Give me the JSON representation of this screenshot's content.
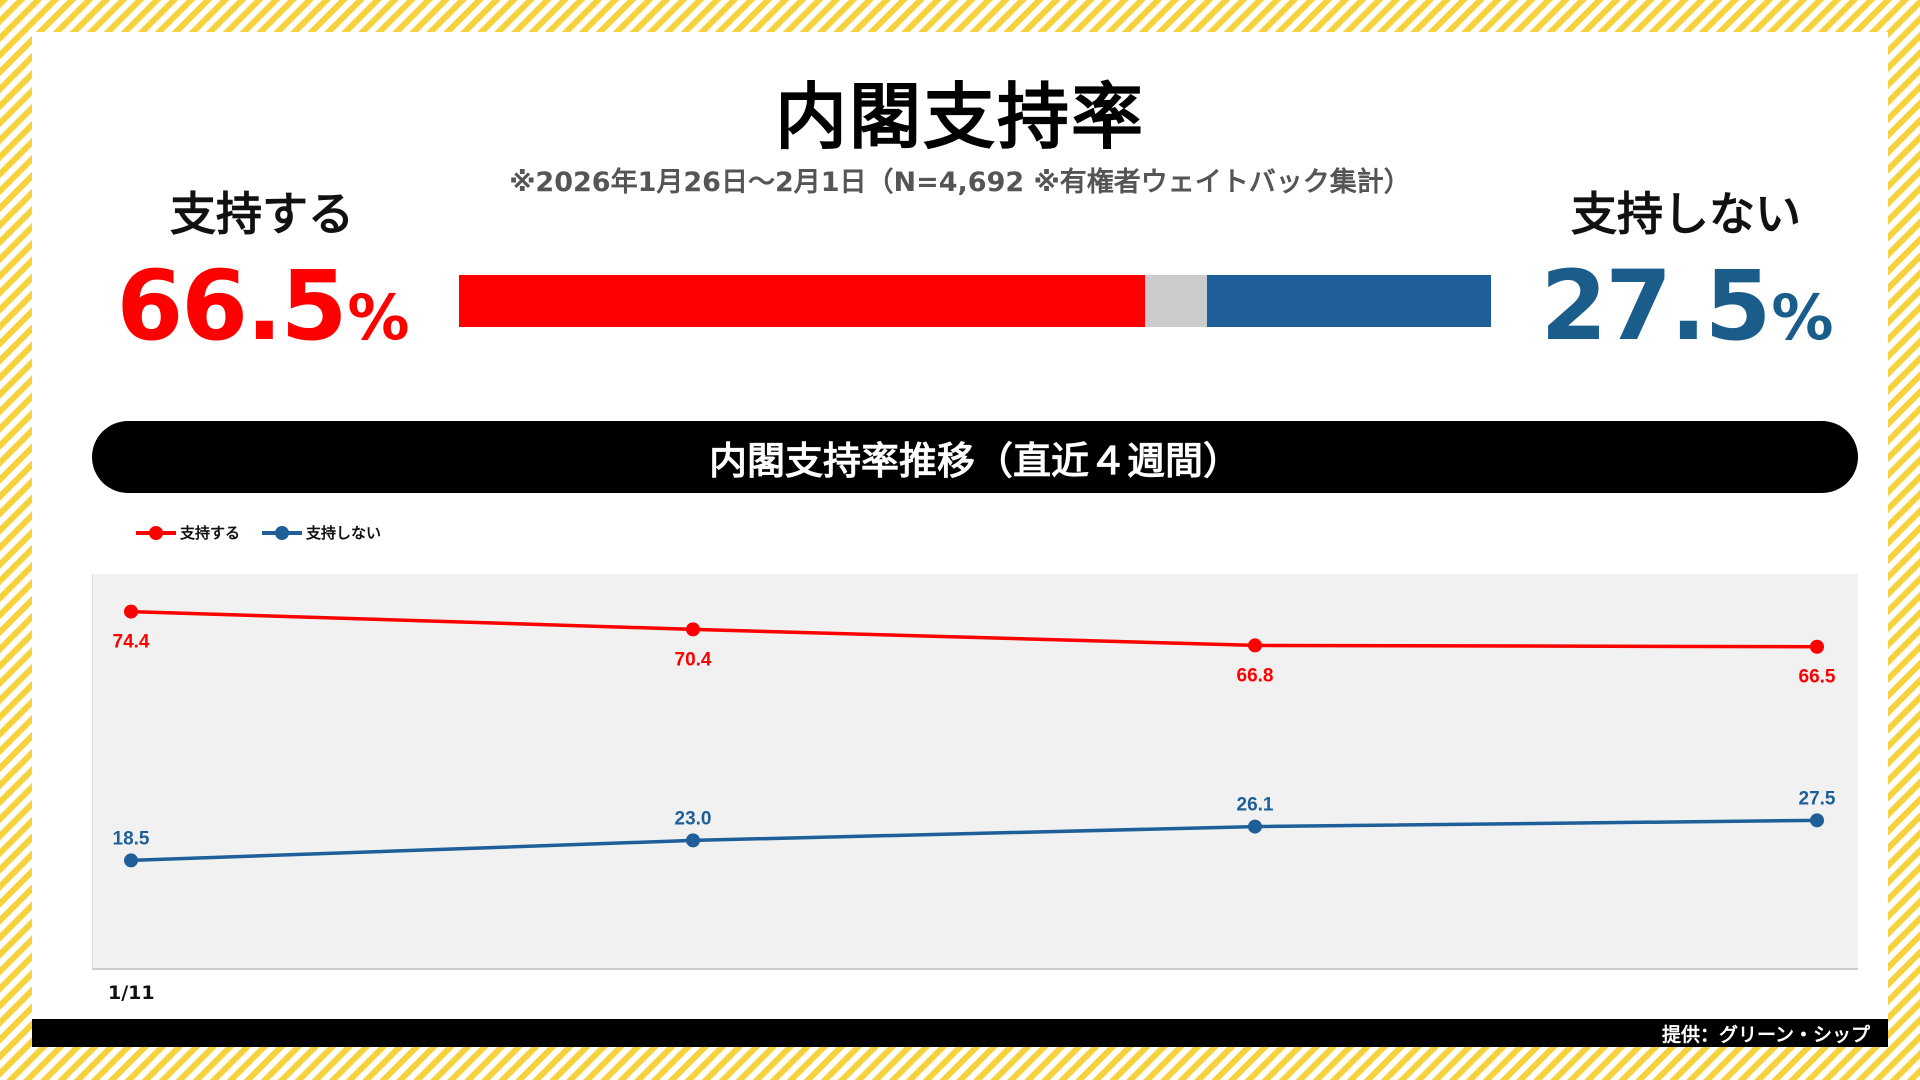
{
  "header": {
    "title": "内閣支持率",
    "subtitle": "※2026年1月26日～2月1日（N=4,692 ※有権者ウェイトバック集計）"
  },
  "summary": {
    "support_label": "支持する",
    "support_value": "66.5",
    "oppose_label": "支持しない",
    "oppose_value": "27.5",
    "percent_sign": "%",
    "support_share": 66.5,
    "other_share": 6.0,
    "oppose_share": 27.5
  },
  "colors": {
    "support": "#ff0000",
    "oppose": "#1f5f99",
    "other": "#cccccc",
    "oppose_text": "#1a5d8a"
  },
  "band": {
    "label": "内閣支持率推移（直近４週間）"
  },
  "legend": {
    "support": "支持する",
    "oppose": "支持しない"
  },
  "chart_data": {
    "type": "line",
    "categories": [
      "1/11",
      "",
      "",
      ""
    ],
    "series": [
      {
        "name": "支持する",
        "values": [
          74.4,
          70.4,
          66.8,
          66.5
        ],
        "labels": [
          "74.4",
          "70.4",
          "66.8",
          "66.5"
        ]
      },
      {
        "name": "支持しない",
        "values": [
          18.5,
          23.0,
          26.1,
          27.5
        ],
        "labels": [
          "18.5",
          "23.0",
          "26.1",
          "27.5"
        ]
      }
    ],
    "xtick_visible": "1/11",
    "grid": false,
    "legend_position": "top-left"
  },
  "footer": {
    "credit": "提供：グリーン・シップ"
  }
}
